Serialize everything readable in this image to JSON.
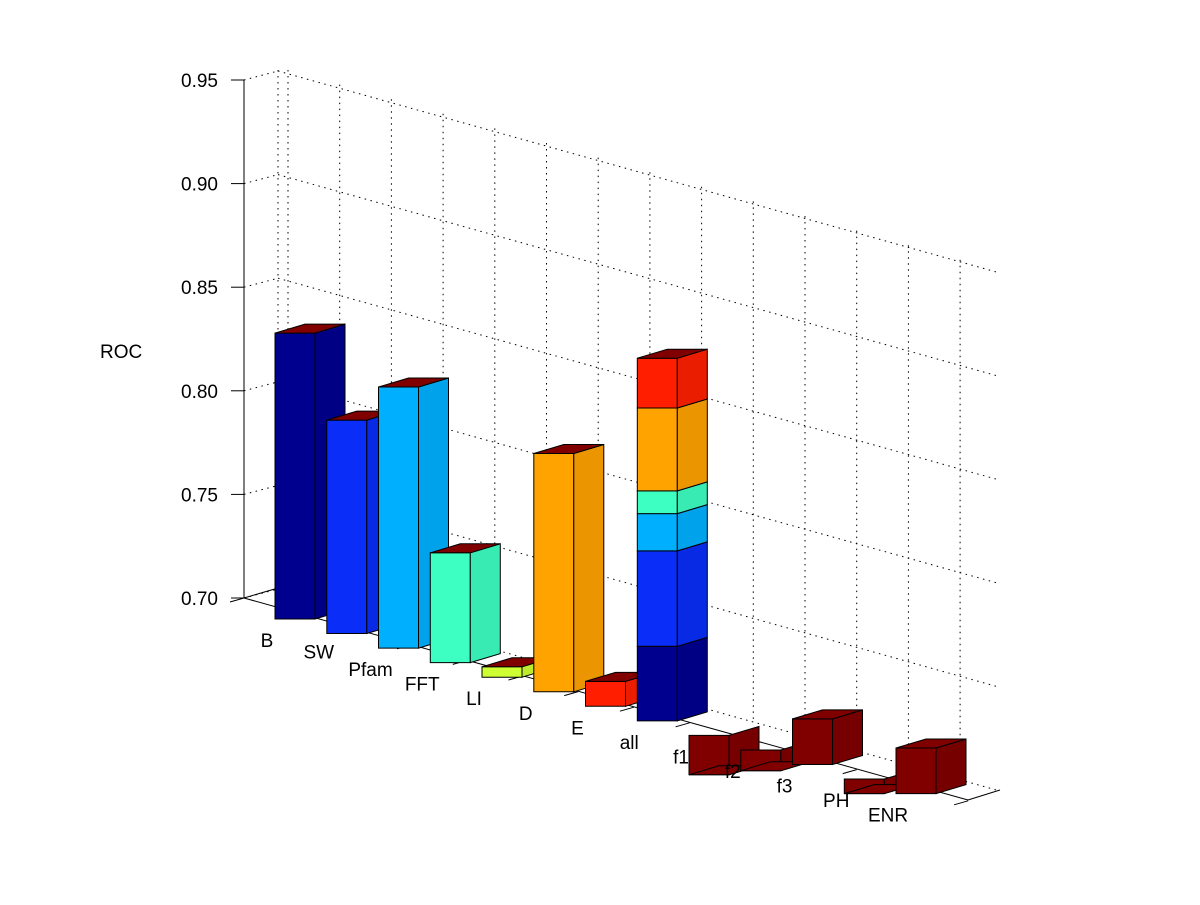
{
  "chart_data": {
    "type": "bar",
    "title": "",
    "xlabel": "",
    "ylabel": "ROC",
    "ylim": [
      0.69,
      0.95
    ],
    "yticks": [
      0.7,
      0.75,
      0.8,
      0.85,
      0.9,
      0.95
    ],
    "ytick_labels": [
      "0.70",
      "0.75",
      "0.80",
      "0.85",
      "0.90",
      "0.95"
    ],
    "grid": true,
    "categories": [
      "B",
      "SW",
      "Pfam",
      "FFT",
      "LI",
      "D",
      "E",
      "all",
      "f1",
      "f2",
      "f3",
      "PH",
      "ENR"
    ],
    "values": [
      0.828,
      0.793,
      0.816,
      0.743,
      0.695,
      0.805,
      0.702,
      0.865,
      0.671,
      0.68,
      0.712,
      0.683,
      0.712
    ],
    "stacked_all": {
      "category": "all",
      "segments": [
        {
          "top": 0.726,
          "color": "#00008f"
        },
        {
          "top": 0.772,
          "color": "#0a2ef8"
        },
        {
          "top": 0.79,
          "color": "#00b0ff"
        },
        {
          "top": 0.801,
          "color": "#3dffc2"
        },
        {
          "top": 0.841,
          "color": "#ffa300"
        },
        {
          "top": 0.865,
          "color": "#ff1f00"
        }
      ]
    },
    "colors": [
      "#00008f",
      "#0a2ef8",
      "#00b0ff",
      "#3dffc2",
      "#cdff32",
      "#ffa300",
      "#ff1f00",
      "#00008f",
      "#800000",
      "#800000",
      "#800000",
      "#800000",
      "#800000"
    ],
    "top_cap_color": "#800000"
  }
}
